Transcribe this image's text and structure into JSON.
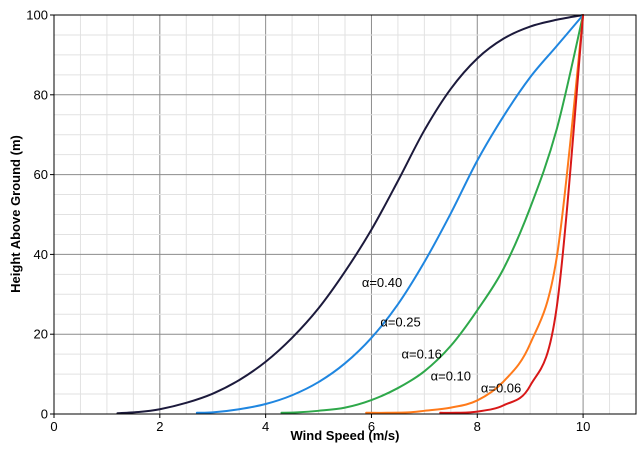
{
  "chart_data": {
    "type": "line",
    "xlabel": "Wind Speed (m/s)",
    "ylabel": "Height Above Ground (m)",
    "xlim": [
      0,
      11
    ],
    "ylim": [
      0,
      100
    ],
    "x_ticks": [
      "0",
      "2",
      "4",
      "6",
      "8",
      "10"
    ],
    "y_ticks": [
      "0",
      "20",
      "40",
      "60",
      "80",
      "100"
    ],
    "grid": true,
    "legend": "inline labels",
    "series": [
      {
        "label": "α=0.40",
        "color": "#1c1a3c",
        "label_at": [
          6.2,
          33
        ],
        "points": [
          [
            1.2,
            0.2
          ],
          [
            1.6,
            0.5
          ],
          [
            2.0,
            1.2
          ],
          [
            2.5,
            2.8
          ],
          [
            3.0,
            5.1
          ],
          [
            3.5,
            8.5
          ],
          [
            4.0,
            13.1
          ],
          [
            4.5,
            19.1
          ],
          [
            5.0,
            26.5
          ],
          [
            5.5,
            35.7
          ],
          [
            6.0,
            46.2
          ],
          [
            6.5,
            58.4
          ],
          [
            7.0,
            71.1
          ],
          [
            7.5,
            81.5
          ],
          [
            8.0,
            89.1
          ],
          [
            8.5,
            94.1
          ],
          [
            9.0,
            97.1
          ],
          [
            9.5,
            98.8
          ],
          [
            10.0,
            100
          ]
        ]
      },
      {
        "label": "α=0.25",
        "color": "#1f86e0",
        "label_at": [
          6.55,
          23
        ],
        "points": [
          [
            2.7,
            0.3
          ],
          [
            3.0,
            0.4
          ],
          [
            3.5,
            1.2
          ],
          [
            4.0,
            2.5
          ],
          [
            4.5,
            4.7
          ],
          [
            5.0,
            8.0
          ],
          [
            5.5,
            12.7
          ],
          [
            6.0,
            19.1
          ],
          [
            6.5,
            27.5
          ],
          [
            7.0,
            38.1
          ],
          [
            7.5,
            50.3
          ],
          [
            8.0,
            63.5
          ],
          [
            8.5,
            74.7
          ],
          [
            9.0,
            84.4
          ],
          [
            9.5,
            92.2
          ],
          [
            10.0,
            100
          ]
        ]
      },
      {
        "label": "α=0.16",
        "color": "#2ea84a",
        "label_at": [
          6.95,
          15
        ],
        "points": [
          [
            4.3,
            0.3
          ],
          [
            4.6,
            0.4
          ],
          [
            5.0,
            0.8
          ],
          [
            5.5,
            1.6
          ],
          [
            6.0,
            3.5
          ],
          [
            6.5,
            6.5
          ],
          [
            7.0,
            10.7
          ],
          [
            7.5,
            17.1
          ],
          [
            8.0,
            26.0
          ],
          [
            8.5,
            36.5
          ],
          [
            9.0,
            51.7
          ],
          [
            9.5,
            71.3
          ],
          [
            10.0,
            100
          ]
        ]
      },
      {
        "label": "α=0.10",
        "color": "#ff7a1a",
        "label_at": [
          7.5,
          9.5
        ],
        "points": [
          [
            5.9,
            0.3
          ],
          [
            6.3,
            0.3
          ],
          [
            6.7,
            0.4
          ],
          [
            7.0,
            0.8
          ],
          [
            7.5,
            1.6
          ],
          [
            8.0,
            3.4
          ],
          [
            8.5,
            8.2
          ],
          [
            9.0,
            17.6
          ],
          [
            9.5,
            39.1
          ],
          [
            10.0,
            100
          ]
        ]
      },
      {
        "label": "α=0.06",
        "color": "#d81818",
        "label_at": [
          8.45,
          6.5
        ],
        "points": [
          [
            7.3,
            0.3
          ],
          [
            7.6,
            0.3
          ],
          [
            8.0,
            0.6
          ],
          [
            8.5,
            2.2
          ],
          [
            9.0,
            7.1
          ],
          [
            9.5,
            26.6
          ],
          [
            10.0,
            100
          ]
        ]
      }
    ]
  }
}
